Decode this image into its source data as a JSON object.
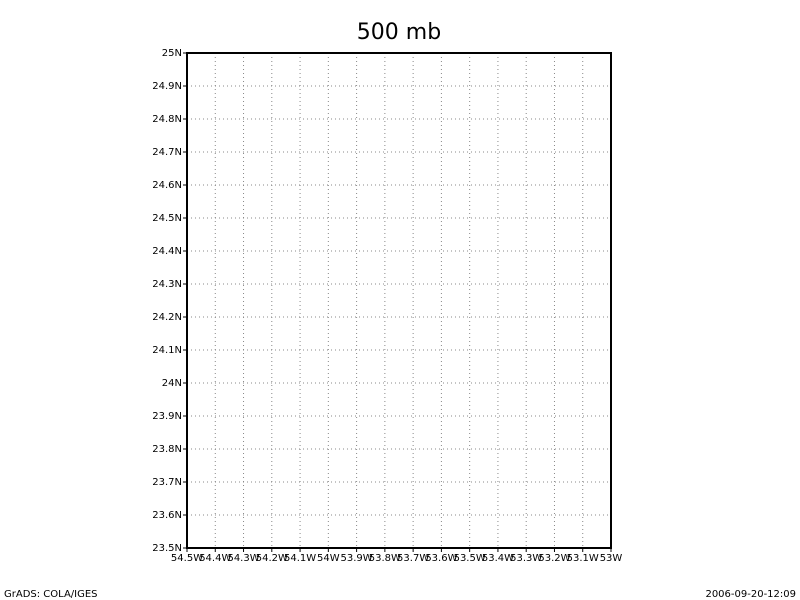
{
  "chart_data": {
    "type": "map",
    "title": "500 mb",
    "xlim": [
      -54.5,
      -53
    ],
    "xticks": [
      {
        "value": -54.5,
        "label": "54.5W"
      },
      {
        "value": -54.4,
        "label": "54.4W"
      },
      {
        "value": -54.3,
        "label": "54.3W"
      },
      {
        "value": -54.2,
        "label": "54.2W"
      },
      {
        "value": -54.1,
        "label": "54.1W"
      },
      {
        "value": -54,
        "label": "54W"
      },
      {
        "value": -53.9,
        "label": "53.9W"
      },
      {
        "value": -53.8,
        "label": "53.8W"
      },
      {
        "value": -53.7,
        "label": "53.7W"
      },
      {
        "value": -53.6,
        "label": "53.6W"
      },
      {
        "value": -53.5,
        "label": "53.5W"
      },
      {
        "value": -53.4,
        "label": "53.4W"
      },
      {
        "value": -53.3,
        "label": "53.3W"
      },
      {
        "value": -53.2,
        "label": "53.2W"
      },
      {
        "value": -53.1,
        "label": "53.1W"
      },
      {
        "value": -53,
        "label": "53W"
      }
    ],
    "ylim": [
      23.5,
      25
    ],
    "yticks": [
      {
        "value": 23.5,
        "label": "23.5N"
      },
      {
        "value": 23.6,
        "label": "23.6N"
      },
      {
        "value": 23.7,
        "label": "23.7N"
      },
      {
        "value": 23.8,
        "label": "23.8N"
      },
      {
        "value": 23.9,
        "label": "23.9N"
      },
      {
        "value": 24,
        "label": "24N"
      },
      {
        "value": 24.1,
        "label": "24.1N"
      },
      {
        "value": 24.2,
        "label": "24.2N"
      },
      {
        "value": 24.3,
        "label": "24.3N"
      },
      {
        "value": 24.4,
        "label": "24.4N"
      },
      {
        "value": 24.5,
        "label": "24.5N"
      },
      {
        "value": 24.6,
        "label": "24.6N"
      },
      {
        "value": 24.7,
        "label": "24.7N"
      },
      {
        "value": 24.8,
        "label": "24.8N"
      },
      {
        "value": 24.9,
        "label": "24.9N"
      },
      {
        "value": 25,
        "label": "25N"
      }
    ],
    "grid": true,
    "footer_left": "GrADS: COLA/IGES",
    "footer_right": "2006-09-20-12:09"
  }
}
